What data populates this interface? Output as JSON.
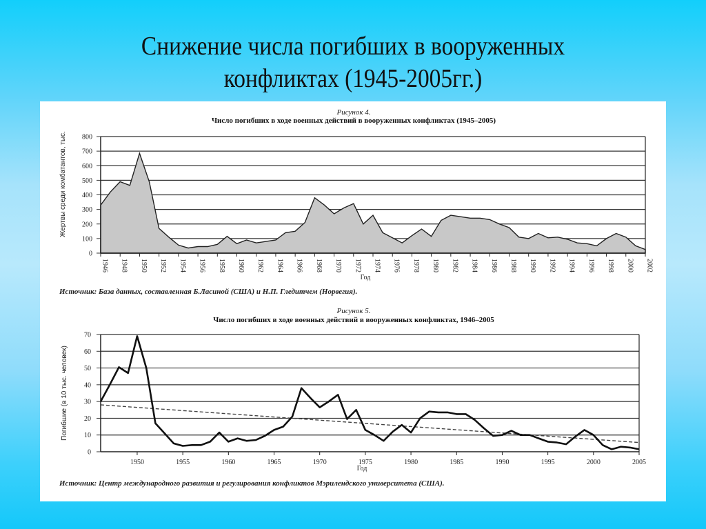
{
  "slide": {
    "title_line1": "Снижение числа погибших в вооруженных",
    "title_line2": "конфликтах (1945-2005гг.)",
    "background_top": "#12cffb",
    "background_mid": "#b8e9fc"
  },
  "chart_data": [
    {
      "type": "area",
      "caption": "Рисунок 4.",
      "title": "Число погибших в ходе военных действий в вооруженных конфликтах (1945–2005)",
      "xlabel": "Год",
      "ylabel": "Жертвы среди комбатантов, тыс.",
      "ylim": [
        0,
        800
      ],
      "yticks": [
        0,
        100,
        200,
        300,
        400,
        500,
        600,
        700,
        800
      ],
      "xticks": [
        1946,
        1948,
        1950,
        1952,
        1954,
        1956,
        1958,
        1960,
        1962,
        1964,
        1966,
        1968,
        1970,
        1972,
        1974,
        1976,
        1978,
        1980,
        1982,
        1984,
        1986,
        1988,
        1990,
        1992,
        1994,
        1996,
        1998,
        2000,
        2002
      ],
      "grid": true,
      "fill_color": "#c8c8c8",
      "source": "Источник: База данных, составленная Б.Ласиной (США) и Н.П. Гледитчем (Норвегия).",
      "x": [
        1946,
        1947,
        1948,
        1949,
        1950,
        1951,
        1952,
        1953,
        1954,
        1955,
        1956,
        1957,
        1958,
        1959,
        1960,
        1961,
        1962,
        1963,
        1964,
        1965,
        1966,
        1967,
        1968,
        1969,
        1970,
        1971,
        1972,
        1973,
        1974,
        1975,
        1976,
        1977,
        1978,
        1979,
        1980,
        1981,
        1982,
        1983,
        1984,
        1985,
        1986,
        1987,
        1988,
        1989,
        1990,
        1991,
        1992,
        1993,
        1994,
        1995,
        1996,
        1997,
        1998,
        1999,
        2000,
        2001,
        2002
      ],
      "values": [
        330,
        420,
        490,
        465,
        685,
        490,
        170,
        110,
        55,
        35,
        45,
        45,
        60,
        115,
        65,
        90,
        70,
        80,
        90,
        140,
        150,
        210,
        380,
        330,
        270,
        310,
        340,
        200,
        260,
        140,
        105,
        70,
        120,
        165,
        115,
        225,
        260,
        250,
        240,
        240,
        230,
        200,
        175,
        110,
        100,
        135,
        105,
        110,
        95,
        70,
        65,
        50,
        100,
        135,
        110,
        50,
        25
      ]
    },
    {
      "type": "line",
      "caption": "Рисунок 5.",
      "title": "Число погибших в ходе военных действий в вооруженных конфликтах, 1946–2005",
      "xlabel": "Год",
      "ylabel": "Погибшие (в 10 тыс. человек)",
      "ylim": [
        0,
        70
      ],
      "yticks": [
        0,
        10,
        20,
        30,
        40,
        50,
        60,
        70
      ],
      "xticks": [
        1950,
        1955,
        1960,
        1965,
        1970,
        1975,
        1980,
        1985,
        1990,
        1995,
        2000,
        2005
      ],
      "grid": true,
      "source": "Источник: Центр международного развития и регулирования конфликтов Мэрилендского университета (США).",
      "series": [
        {
          "name": "Погибшие",
          "style": "solid",
          "x": [
            1946,
            1947,
            1948,
            1949,
            1950,
            1951,
            1952,
            1953,
            1954,
            1955,
            1956,
            1957,
            1958,
            1959,
            1960,
            1961,
            1962,
            1963,
            1964,
            1965,
            1966,
            1967,
            1968,
            1969,
            1970,
            1971,
            1972,
            1973,
            1974,
            1975,
            1976,
            1977,
            1978,
            1979,
            1980,
            1981,
            1982,
            1983,
            1984,
            1985,
            1986,
            1987,
            1988,
            1989,
            1990,
            1991,
            1992,
            1993,
            1994,
            1995,
            1996,
            1997,
            1998,
            1999,
            2000,
            2001,
            2002,
            2003,
            2004,
            2005
          ],
          "values": [
            30,
            40,
            50.5,
            47,
            69,
            50,
            17,
            11,
            5,
            3.5,
            4,
            4,
            6,
            11.5,
            6,
            8,
            6.5,
            7,
            9.5,
            13,
            15,
            21,
            38,
            32,
            26.5,
            30,
            34,
            19.5,
            25,
            13,
            10,
            6.5,
            12,
            16,
            11.5,
            20,
            24,
            23.5,
            23.5,
            22.5,
            22.5,
            19,
            14,
            9.5,
            10,
            12.5,
            10,
            10,
            8,
            6,
            5.5,
            4.5,
            9,
            13,
            10,
            4,
            1.5,
            3,
            2.5,
            1.5
          ]
        },
        {
          "name": "Тренд",
          "style": "dashed",
          "x": [
            1946,
            2005
          ],
          "values": [
            28,
            5.5
          ]
        }
      ]
    }
  ]
}
